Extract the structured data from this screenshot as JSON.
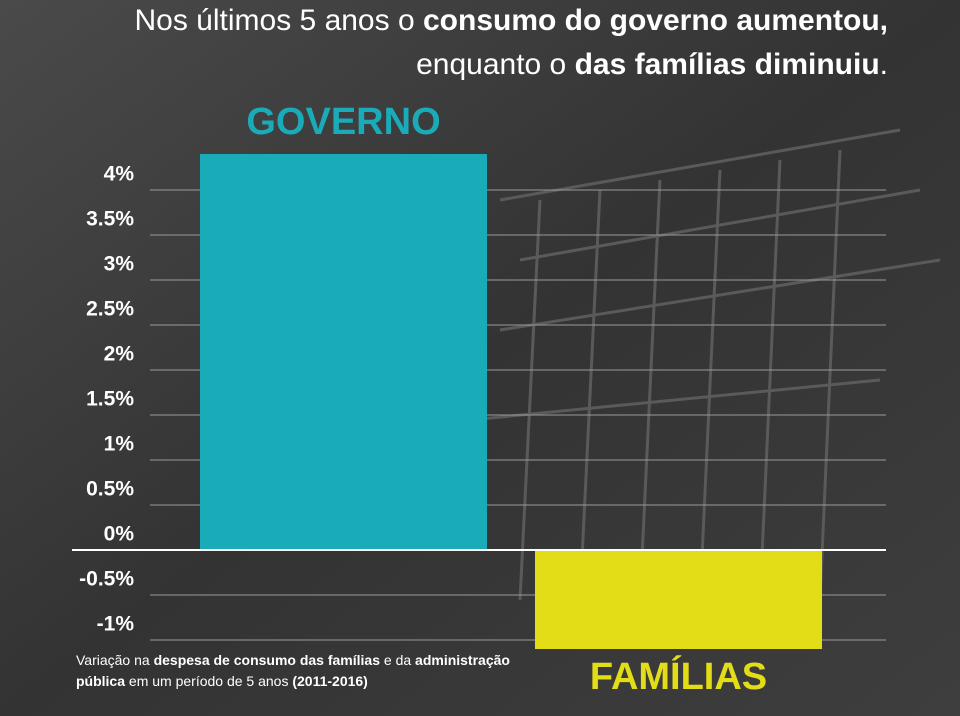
{
  "chart_data": {
    "type": "bar",
    "title": [
      [
        "Nos últimos 5 anos o ",
        "consumo do governo aumentou,"
      ],
      [
        "enquanto o ",
        "das famílias diminuiu",
        "."
      ]
    ],
    "categories": [
      "GOVERNO",
      "FAMÍLIAS"
    ],
    "values": [
      4.4,
      -1.1
    ],
    "colors": [
      "#1aabb8",
      "#e2dd17"
    ],
    "ylim": [
      -1.2,
      4.5
    ],
    "yticks": [
      {
        "value": 4,
        "label": "4%"
      },
      {
        "value": 3.5,
        "label": "3.5%"
      },
      {
        "value": 3,
        "label": "3%"
      },
      {
        "value": 2.5,
        "label": "2.5%"
      },
      {
        "value": 2,
        "label": "2%"
      },
      {
        "value": 1.5,
        "label": "1.5%"
      },
      {
        "value": 1,
        "label": "1%"
      },
      {
        "value": 0.5,
        "label": "0.5%"
      },
      {
        "value": 0,
        "label": "0%"
      },
      {
        "value": -0.5,
        "label": "-0.5%"
      },
      {
        "value": -1,
        "label": "-1%"
      }
    ],
    "grid": true,
    "footnote": [
      [
        "Variação na ",
        "despesa de consumo das famílias",
        " e da ",
        "administração"
      ],
      [
        "pública",
        " em um período de 5 anos ",
        "(2011-2016)"
      ]
    ]
  }
}
